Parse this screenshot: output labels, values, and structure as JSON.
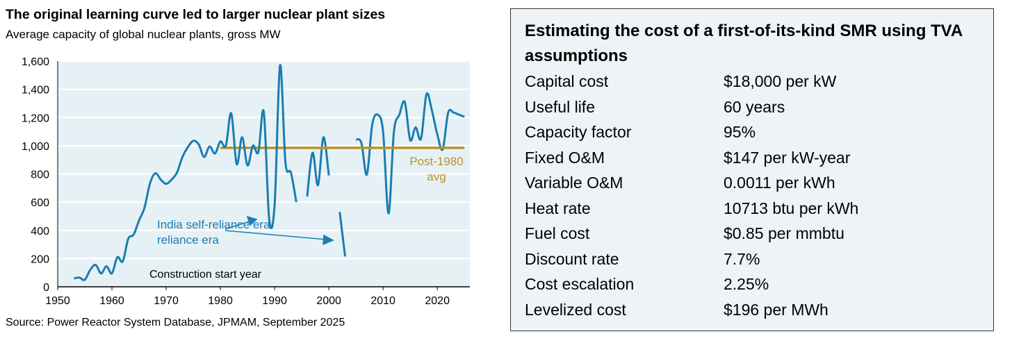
{
  "chart_data": {
    "type": "line",
    "title": "The original learning curve led to larger nuclear plant sizes",
    "subtitle": "Average capacity of global nuclear plants, gross MW",
    "xlabel": "Construction start year",
    "ylabel": "",
    "xlim": [
      1950,
      2026
    ],
    "ylim": [
      0,
      1600
    ],
    "xticks": [
      "1950",
      "1960",
      "1970",
      "1980",
      "1990",
      "2000",
      "2010",
      "2020"
    ],
    "yticks": [
      "0",
      "200",
      "400",
      "600",
      "800",
      "1,000",
      "1,200",
      "1,400",
      "1,600"
    ],
    "grid": true,
    "series": [
      {
        "name": "Average capacity",
        "color": "#1a7db0",
        "x": [
          1953,
          1954,
          1955,
          1956,
          1957,
          1958,
          1959,
          1960,
          1961,
          1962,
          1963,
          1964,
          1965,
          1966,
          1967,
          1968,
          1969,
          1970,
          1971,
          1972,
          1973,
          1974,
          1975,
          1976,
          1977,
          1978,
          1979,
          1980,
          1981,
          1982,
          1983,
          1984,
          1985,
          1986,
          1987,
          1988,
          1989,
          1990,
          1991,
          1992,
          1993,
          1994,
          1995,
          1996,
          1997,
          1998,
          1999,
          2000,
          2001,
          2002,
          2003,
          2004,
          2005,
          2006,
          2007,
          2008,
          2009,
          2010,
          2011,
          2012,
          2013,
          2014,
          2015,
          2016,
          2017,
          2018,
          2019,
          2020,
          2021,
          2022,
          2023,
          2024,
          2025
        ],
        "y": [
          60,
          65,
          50,
          120,
          155,
          95,
          145,
          95,
          210,
          180,
          340,
          370,
          470,
          560,
          730,
          805,
          760,
          730,
          760,
          810,
          920,
          990,
          1035,
          1010,
          920,
          995,
          945,
          1030,
          1000,
          1230,
          870,
          1060,
          860,
          1000,
          955,
          1240,
          480,
          580,
          1570,
          880,
          810,
          600,
          null,
          640,
          950,
          720,
          1060,
          790,
          null,
          530,
          215,
          null,
          1045,
          1020,
          795,
          1150,
          1220,
          1100,
          520,
          1100,
          1220,
          1310,
          1040,
          1130,
          1050,
          1365,
          1250,
          1080,
          975,
          1235,
          1235,
          1220,
          1205
        ]
      },
      {
        "name": "Post-1980 avg",
        "color": "#b8922c",
        "x": [
          1980,
          2025
        ],
        "y": [
          985,
          985
        ]
      }
    ],
    "annotations": [
      "India self-reliance era",
      "Post-1980",
      "avg"
    ]
  },
  "source": "Source: Power Reactor System Database, JPMAM, September 2025",
  "table": {
    "title": "Estimating the cost of a first-of-its-kind SMR using TVA assumptions",
    "rows": [
      {
        "label": "Capital cost",
        "value": "$18,000 per kW"
      },
      {
        "label": "Useful life",
        "value": "60 years"
      },
      {
        "label": "Capacity factor",
        "value": "95%"
      },
      {
        "label": "Fixed O&M",
        "value": "$147 per kW-year"
      },
      {
        "label": "Variable O&M",
        "value": "0.0011 per kWh"
      },
      {
        "label": "Heat rate",
        "value": "10713 btu per kWh"
      },
      {
        "label": "Fuel cost",
        "value": "$0.85 per mmbtu"
      },
      {
        "label": "Discount rate",
        "value": "7.7%"
      },
      {
        "label": "Cost escalation",
        "value": "2.25%"
      },
      {
        "label": "Levelized cost",
        "value": "$196 per MWh"
      }
    ]
  }
}
